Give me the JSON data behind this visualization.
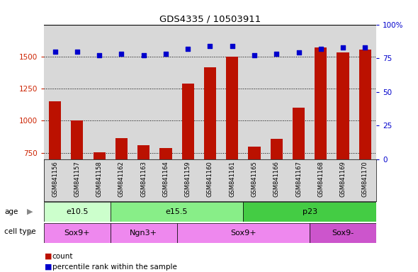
{
  "title": "GDS4335 / 10503911",
  "samples": [
    "GSM841156",
    "GSM841157",
    "GSM841158",
    "GSM841162",
    "GSM841163",
    "GSM841164",
    "GSM841159",
    "GSM841160",
    "GSM841161",
    "GSM841165",
    "GSM841166",
    "GSM841167",
    "GSM841168",
    "GSM841169",
    "GSM841170"
  ],
  "counts": [
    1150,
    1000,
    755,
    865,
    810,
    785,
    1290,
    1415,
    1500,
    800,
    860,
    1100,
    1570,
    1530,
    1555
  ],
  "percentiles": [
    80,
    80,
    77,
    78,
    77,
    78,
    82,
    84,
    84,
    77,
    78,
    79,
    82,
    83,
    83
  ],
  "ylim_left": [
    700,
    1750
  ],
  "ylim_right": [
    0,
    100
  ],
  "yticks_left": [
    750,
    1000,
    1250,
    1500
  ],
  "yticks_right": [
    0,
    25,
    50,
    75,
    100
  ],
  "age_groups": [
    {
      "label": "e10.5",
      "start": 0,
      "end": 3
    },
    {
      "label": "e15.5",
      "start": 3,
      "end": 9
    },
    {
      "label": "p23",
      "start": 9,
      "end": 15
    }
  ],
  "age_colors": [
    "#ccffcc",
    "#88ee88",
    "#44cc44"
  ],
  "cell_type_groups": [
    {
      "label": "Sox9+",
      "start": 0,
      "end": 3
    },
    {
      "label": "Ngn3+",
      "start": 3,
      "end": 6
    },
    {
      "label": "Sox9+",
      "start": 6,
      "end": 12
    },
    {
      "label": "Sox9-",
      "start": 12,
      "end": 15
    }
  ],
  "cell_colors": [
    "#ee88ee",
    "#ee88ee",
    "#ee88ee",
    "#cc55cc"
  ],
  "bar_color": "#bb1100",
  "dot_color": "#0000cc",
  "left_tick_color": "#cc2200",
  "right_tick_color": "#0000cc",
  "bg_col_color": "#d8d8d8"
}
